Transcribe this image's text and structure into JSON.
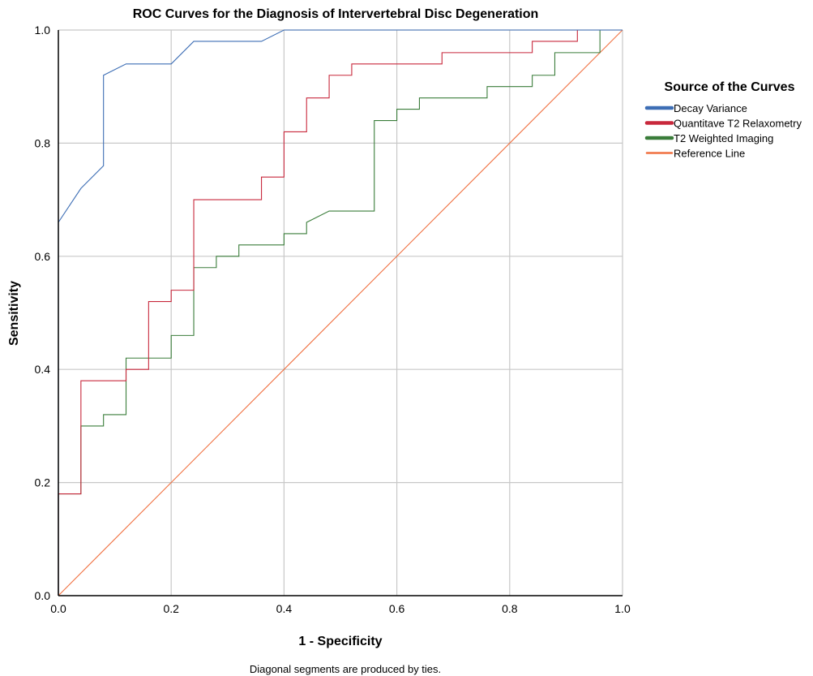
{
  "chart_data": {
    "type": "line",
    "title": "ROC Curves for the Diagnosis of Intervertebral Disc Degeneration",
    "xlabel": "1 - Specificity",
    "ylabel": "Sensitivity",
    "xlim": [
      0,
      1
    ],
    "ylim": [
      0,
      1
    ],
    "xticks": [
      "0.0",
      "0.2",
      "0.4",
      "0.6",
      "0.8",
      "1.0"
    ],
    "yticks": [
      "0.0",
      "0.2",
      "0.4",
      "0.6",
      "0.8",
      "1.0"
    ],
    "grid": true,
    "legend_title": "Source of the Curves",
    "legend_position": "right",
    "footnote": "Diagonal segments are produced by ties.",
    "series": [
      {
        "name": "Decay Variance",
        "color": "#3d6eb5",
        "x": [
          0,
          0,
          0.04,
          0.08,
          0.08,
          0.12,
          0.2,
          0.24,
          0.36,
          0.4,
          1.0
        ],
        "y": [
          0,
          0.66,
          0.72,
          0.76,
          0.92,
          0.94,
          0.94,
          0.98,
          0.98,
          1.0,
          1.0
        ]
      },
      {
        "name": "Quantitave T2 Relaxometry",
        "color": "#c8283c",
        "x": [
          0,
          0,
          0.04,
          0.04,
          0.12,
          0.12,
          0.16,
          0.16,
          0.2,
          0.2,
          0.24,
          0.24,
          0.36,
          0.36,
          0.4,
          0.4,
          0.44,
          0.44,
          0.48,
          0.48,
          0.52,
          0.52,
          0.68,
          0.68,
          0.84,
          0.84,
          0.92,
          0.92,
          1.0
        ],
        "y": [
          0,
          0.18,
          0.18,
          0.38,
          0.38,
          0.4,
          0.4,
          0.52,
          0.52,
          0.54,
          0.54,
          0.7,
          0.7,
          0.74,
          0.74,
          0.82,
          0.82,
          0.88,
          0.88,
          0.92,
          0.92,
          0.94,
          0.94,
          0.96,
          0.96,
          0.98,
          0.98,
          1.0,
          1.0
        ]
      },
      {
        "name": "T2 Weighted Imaging",
        "color": "#3a7d3a",
        "x": [
          0,
          0,
          0.04,
          0.04,
          0.08,
          0.08,
          0.12,
          0.12,
          0.2,
          0.2,
          0.24,
          0.24,
          0.28,
          0.28,
          0.32,
          0.32,
          0.4,
          0.4,
          0.44,
          0.44,
          0.48,
          0.56,
          0.56,
          0.6,
          0.6,
          0.64,
          0.64,
          0.76,
          0.76,
          0.84,
          0.84,
          0.88,
          0.88,
          0.96,
          0.96,
          1.0
        ],
        "y": [
          0,
          0.18,
          0.18,
          0.3,
          0.3,
          0.32,
          0.32,
          0.42,
          0.42,
          0.46,
          0.46,
          0.58,
          0.58,
          0.6,
          0.6,
          0.62,
          0.62,
          0.64,
          0.64,
          0.66,
          0.68,
          0.68,
          0.84,
          0.84,
          0.86,
          0.86,
          0.88,
          0.88,
          0.9,
          0.9,
          0.92,
          0.92,
          0.96,
          0.96,
          1.0,
          1.0
        ]
      },
      {
        "name": "Reference Line",
        "color": "#f07040",
        "x": [
          0,
          1
        ],
        "y": [
          0,
          1
        ]
      }
    ]
  }
}
